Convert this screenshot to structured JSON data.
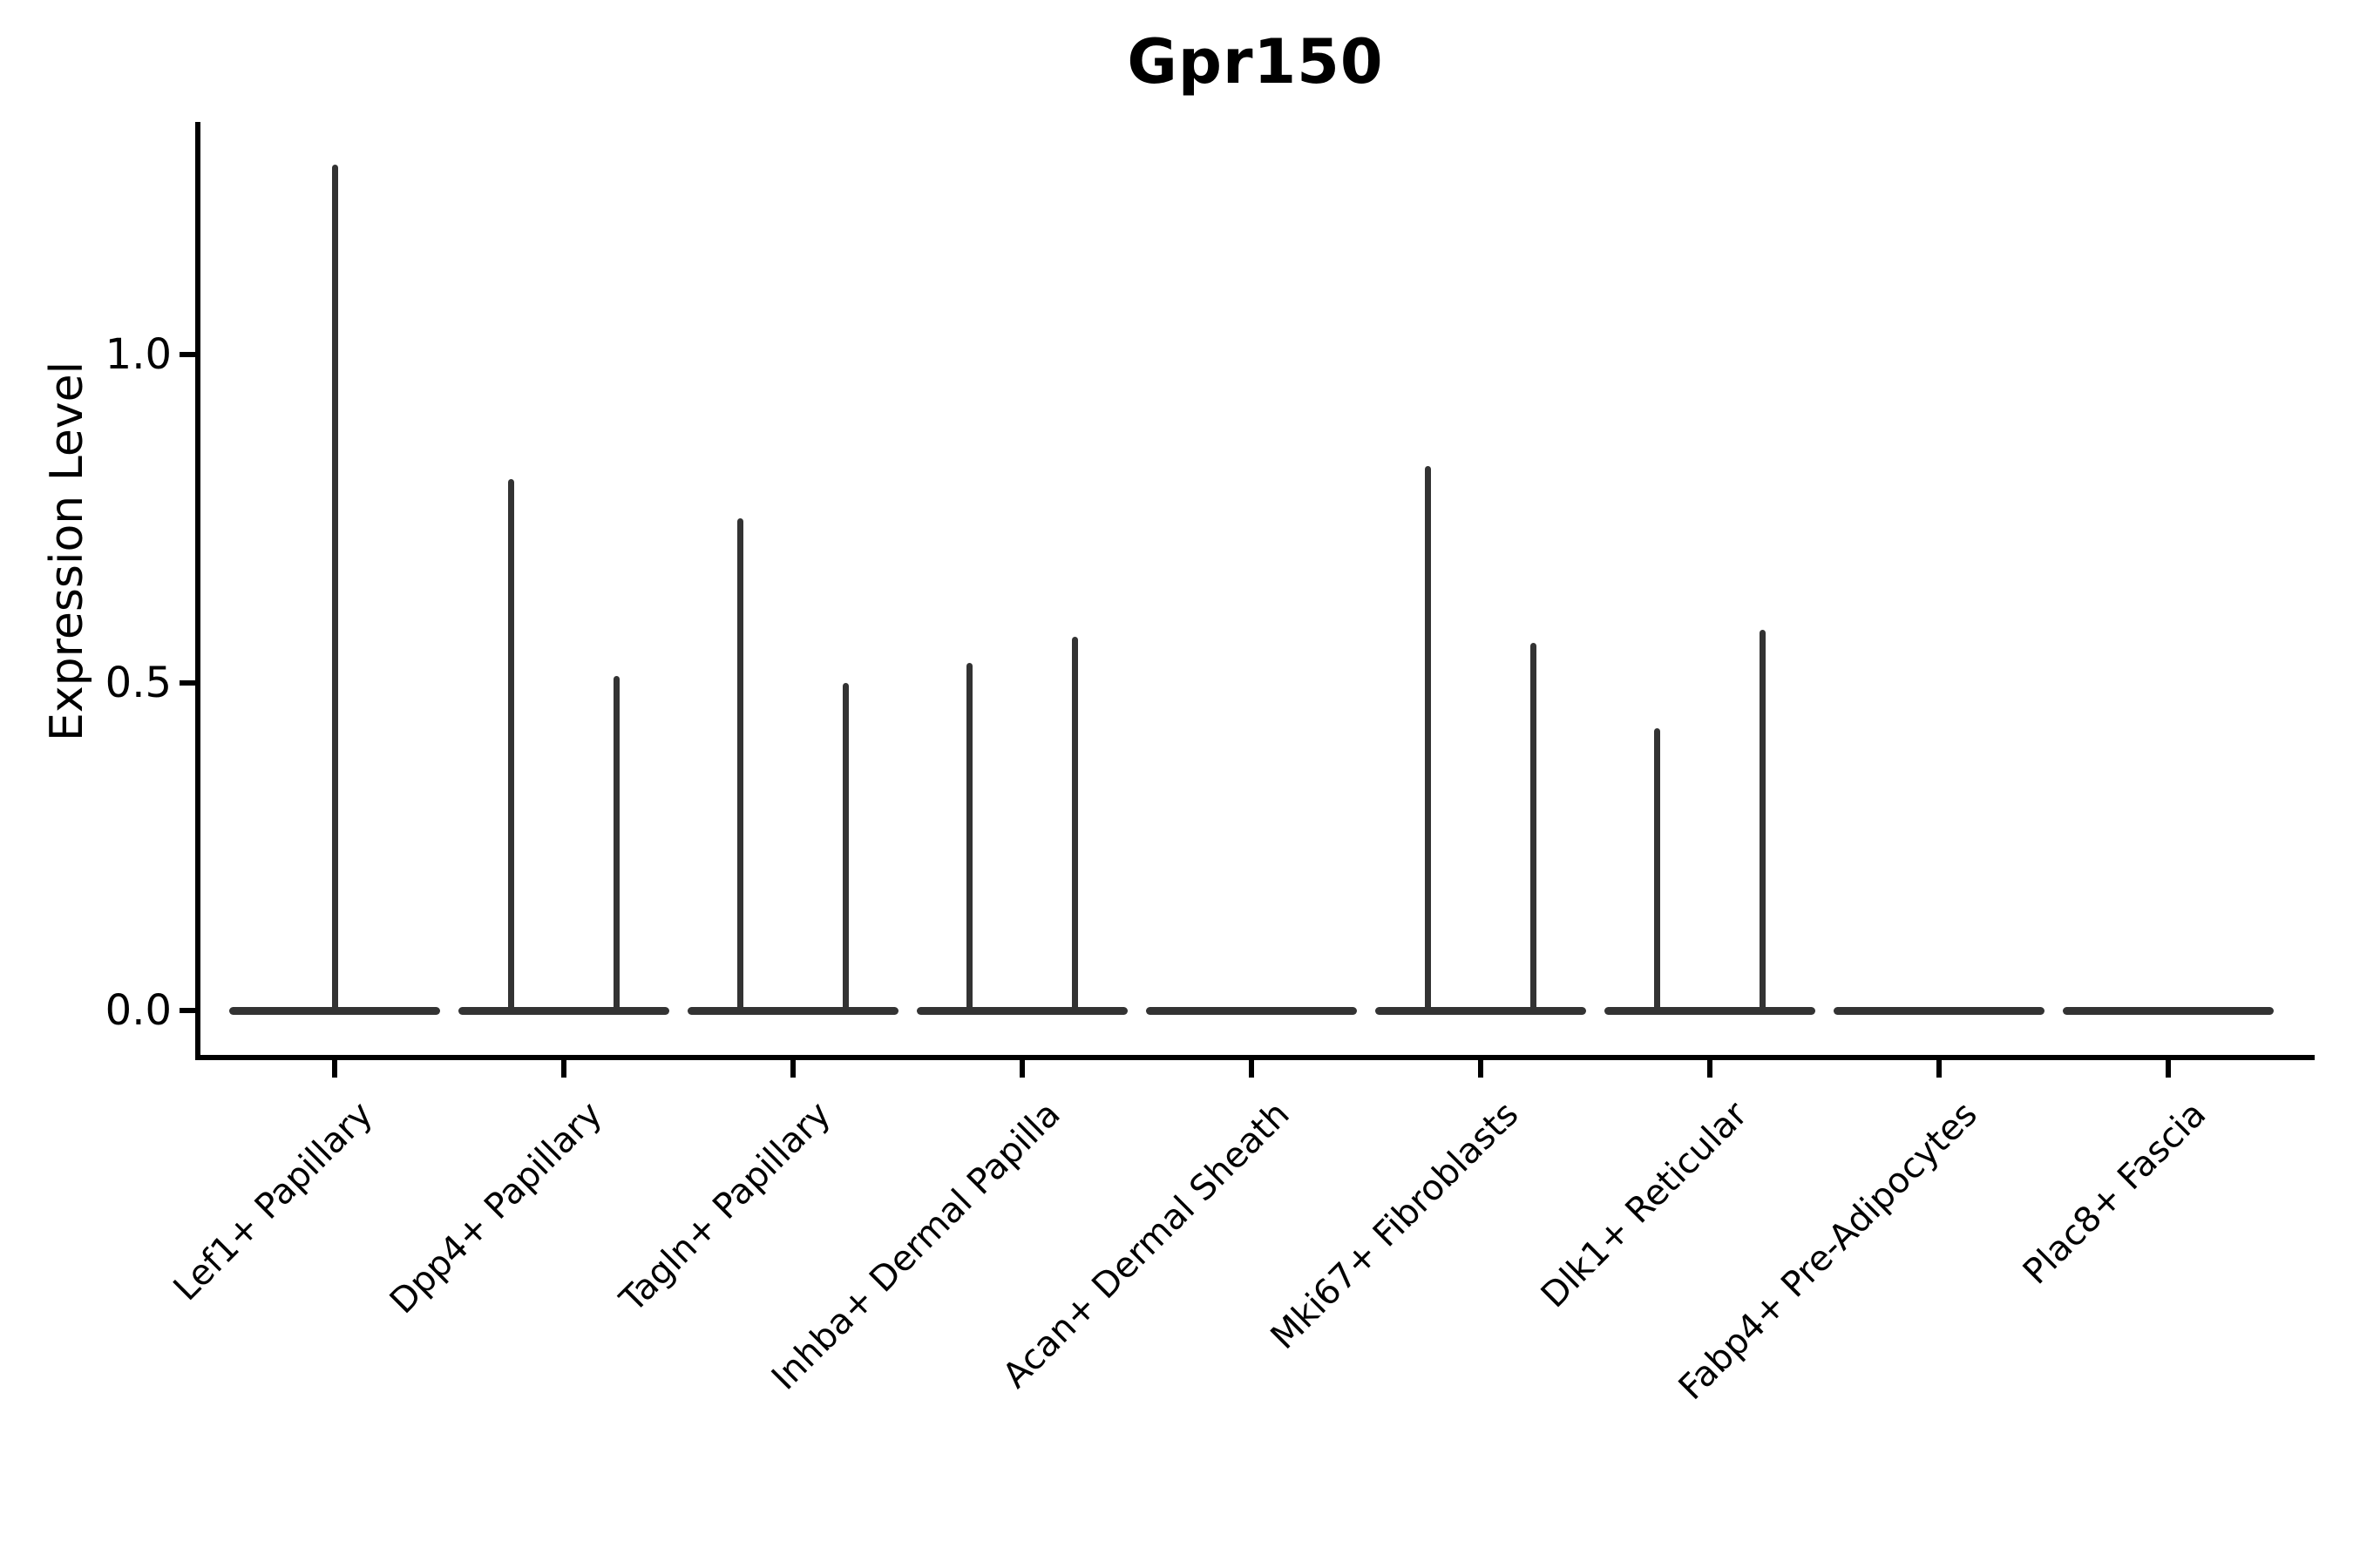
{
  "title": "Gpr150",
  "axes": {
    "ylabel": "Expression Level",
    "ytick_labels": [
      "0.0",
      "0.5",
      "1.0"
    ],
    "colors": {
      "axis": "#000000",
      "text": "#000000",
      "violin": "#333333",
      "background": "#ffffff"
    }
  },
  "chart_data": {
    "type": "violin",
    "title": "Gpr150",
    "xlabel": "",
    "ylabel": "Expression Level",
    "yticks": [
      0.0,
      0.5,
      1.0
    ],
    "ylim": [
      -0.07,
      1.36
    ],
    "grid": false,
    "legend": false,
    "categories": [
      "Lef1+ Papillary",
      "Dpp4+ Papillary",
      "Tagln+ Papillary",
      "Inhba+ Dermal Papilla",
      "Acan+ Dermal Sheath",
      "Mki67+ Fibroblasts",
      "Dlk1+ Reticular",
      "Fabp4+ Pre-Adipocytes",
      "Plac8+ Fascia"
    ],
    "violins": [
      {
        "category": "Lef1+ Papillary",
        "base_halfwidth": 0.46,
        "spikes": [
          {
            "offset": 0.0,
            "max": 1.29
          }
        ]
      },
      {
        "category": "Dpp4+ Papillary",
        "base_halfwidth": 0.46,
        "spikes": [
          {
            "offset": -0.23,
            "max": 0.81
          },
          {
            "offset": 0.23,
            "max": 0.51
          }
        ]
      },
      {
        "category": "Tagln+ Papillary",
        "base_halfwidth": 0.46,
        "spikes": [
          {
            "offset": -0.23,
            "max": 0.75
          },
          {
            "offset": 0.23,
            "max": 0.5
          }
        ]
      },
      {
        "category": "Inhba+ Dermal Papilla",
        "base_halfwidth": 0.46,
        "spikes": [
          {
            "offset": -0.23,
            "max": 0.53
          },
          {
            "offset": 0.23,
            "max": 0.57
          }
        ]
      },
      {
        "category": "Acan+ Dermal Sheath",
        "base_halfwidth": 0.46,
        "spikes": []
      },
      {
        "category": "Mki67+ Fibroblasts",
        "base_halfwidth": 0.46,
        "spikes": [
          {
            "offset": -0.23,
            "max": 0.83
          },
          {
            "offset": 0.23,
            "max": 0.56
          }
        ]
      },
      {
        "category": "Dlk1+ Reticular",
        "base_halfwidth": 0.46,
        "spikes": [
          {
            "offset": -0.23,
            "max": 0.43
          },
          {
            "offset": 0.23,
            "max": 0.58
          }
        ]
      },
      {
        "category": "Fabp4+ Pre-Adipocytes",
        "base_halfwidth": 0.46,
        "spikes": []
      },
      {
        "category": "Plac8+ Fascia",
        "base_halfwidth": 0.46,
        "spikes": []
      }
    ]
  }
}
